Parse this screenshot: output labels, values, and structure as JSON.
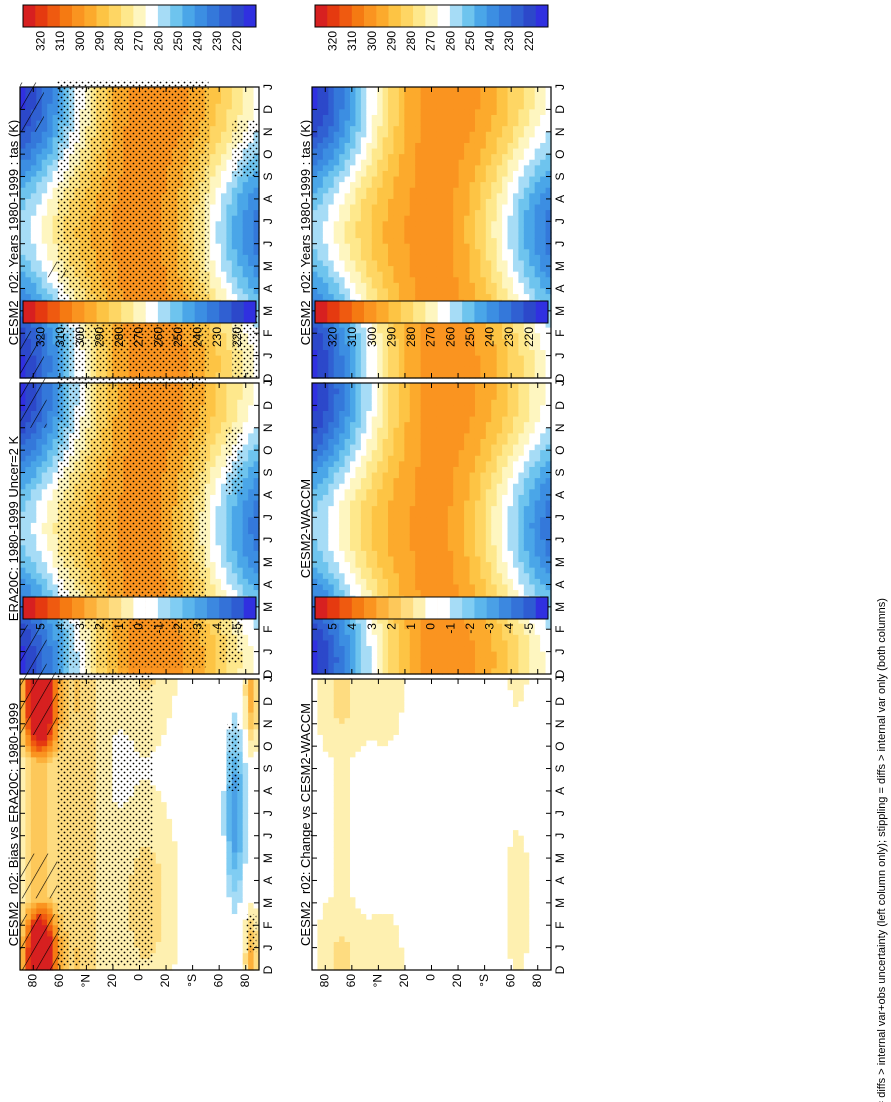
{
  "footer": "hatching = diffs > internal var+obs uncertainty (left column only); stippling = diffs > internal var only (both columns)",
  "colors": {
    "abs": [
      "#d72020",
      "#e53a10",
      "#ef5a10",
      "#f57a12",
      "#fa9420",
      "#fcaa2c",
      "#fdc444",
      "#fed664",
      "#fee88c",
      "#fef6c0",
      "#ffffff",
      "#a6dcf6",
      "#6ec4ee",
      "#4aa6e8",
      "#3c8ee2",
      "#3478da",
      "#3060d2",
      "#2c48ca",
      "#3030e0"
    ],
    "diff": [
      "#d72020",
      "#e53a10",
      "#ef5a10",
      "#f57a12",
      "#fa9420",
      "#fcb03a",
      "#fdc85a",
      "#fedc80",
      "#fef0b0",
      "#ffffff",
      "#ffffff",
      "#a6dcf6",
      "#80cdf3",
      "#5cb6ec",
      "#4aa0e6",
      "#3c88e0",
      "#3472d8",
      "#2e5cd2",
      "#3030e0"
    ]
  },
  "chart_data": [
    {
      "id": "model-climatology",
      "type": "heatmap",
      "title": "CESM2_r02: Years 1980-1999 : tas (K)",
      "xlabel": "latitude",
      "ylabel": "month",
      "x_ticks": [
        "80",
        "60",
        "°N",
        "20",
        "0",
        "20",
        "°S",
        "60",
        "80"
      ],
      "y_ticks": [
        "D",
        "J",
        "F",
        "M",
        "A",
        "M",
        "J",
        "J",
        "A",
        "S",
        "O",
        "N",
        "D",
        "J"
      ],
      "colorbar": {
        "labels": [
          "320",
          "310",
          "300",
          "290",
          "280",
          "270",
          "260",
          "250",
          "240",
          "230",
          "220"
        ],
        "min": 220,
        "max": 320,
        "units": "K"
      },
      "hatching": true,
      "stippling": true
    },
    {
      "id": "model-climatology-2",
      "type": "heatmap",
      "title": "CESM2_r02: Years 1980-1999 : tas (K)",
      "xlabel": "latitude",
      "ylabel": "month",
      "x_ticks": [
        "80",
        "60",
        "°N",
        "20",
        "0",
        "20",
        "°S",
        "60",
        "80"
      ],
      "y_ticks": [
        "D",
        "J",
        "F",
        "M",
        "A",
        "M",
        "J",
        "J",
        "A",
        "S",
        "O",
        "N",
        "D",
        "J"
      ],
      "colorbar": {
        "labels": [
          "320",
          "310",
          "300",
          "290",
          "280",
          "270",
          "260",
          "250",
          "240",
          "230",
          "220"
        ],
        "min": 220,
        "max": 320,
        "units": "K"
      },
      "hatching": false,
      "stippling": false
    },
    {
      "id": "reanalysis",
      "type": "heatmap",
      "title": "ERA20C: 1980-1999 Uncer=2 K",
      "xlabel": "latitude",
      "ylabel": "month",
      "x_ticks": [
        "80",
        "60",
        "°N",
        "20",
        "0",
        "20",
        "°S",
        "60",
        "80"
      ],
      "y_ticks": [
        "D",
        "J",
        "F",
        "M",
        "A",
        "M",
        "J",
        "J",
        "A",
        "S",
        "O",
        "N",
        "D",
        "J"
      ],
      "colorbar": {
        "labels": [
          "320",
          "310",
          "300",
          "290",
          "280",
          "270",
          "260",
          "250",
          "240",
          "230",
          "220"
        ],
        "min": 220,
        "max": 320,
        "units": "K"
      },
      "hatching": true,
      "stippling": true
    },
    {
      "id": "reference-model",
      "type": "heatmap",
      "title": "CESM2-WACCM",
      "xlabel": "latitude",
      "ylabel": "month",
      "x_ticks": [
        "80",
        "60",
        "°N",
        "20",
        "0",
        "20",
        "°S",
        "60",
        "80"
      ],
      "y_ticks": [
        "D",
        "J",
        "F",
        "M",
        "A",
        "M",
        "J",
        "J",
        "A",
        "S",
        "O",
        "N",
        "D",
        "J"
      ],
      "colorbar": {
        "labels": [
          "320",
          "310",
          "300",
          "290",
          "280",
          "270",
          "260",
          "250",
          "240",
          "230",
          "220"
        ],
        "min": 220,
        "max": 320,
        "units": "K"
      },
      "hatching": false,
      "stippling": false
    },
    {
      "id": "bias",
      "type": "heatmap",
      "title": "CESM2_r02: Bias vs ERA20C: 1980-1999",
      "xlabel": "latitude",
      "ylabel": "month",
      "x_ticks": [
        "80",
        "60",
        "°N",
        "20",
        "0",
        "20",
        "°S",
        "60",
        "80"
      ],
      "y_ticks": [
        "D",
        "J",
        "F",
        "M",
        "A",
        "M",
        "J",
        "J",
        "A",
        "S",
        "O",
        "N",
        "D",
        "J"
      ],
      "colorbar": {
        "labels": [
          "5",
          "4",
          "3",
          "2",
          "1",
          "0",
          "-1",
          "-2",
          "-3",
          "-4",
          "-5"
        ],
        "min": -5,
        "max": 5,
        "units": "K"
      },
      "hatching": true,
      "stippling": true
    },
    {
      "id": "change",
      "type": "heatmap",
      "title": "CESM2_r02: Change vs CESM2-WACCM",
      "xlabel": "latitude",
      "ylabel": "month",
      "x_ticks": [
        "80",
        "60",
        "°N",
        "20",
        "0",
        "20",
        "°S",
        "60",
        "80"
      ],
      "y_ticks": [
        "D",
        "J",
        "F",
        "M",
        "A",
        "M",
        "J",
        "J",
        "A",
        "S",
        "O",
        "N",
        "D",
        "J"
      ],
      "colorbar": {
        "labels": [
          "5",
          "4",
          "3",
          "2",
          "1",
          "0",
          "-1",
          "-2",
          "-3",
          "-4",
          "-5"
        ],
        "min": -5,
        "max": 5,
        "units": "K"
      },
      "hatching": false,
      "stippling": false
    }
  ]
}
